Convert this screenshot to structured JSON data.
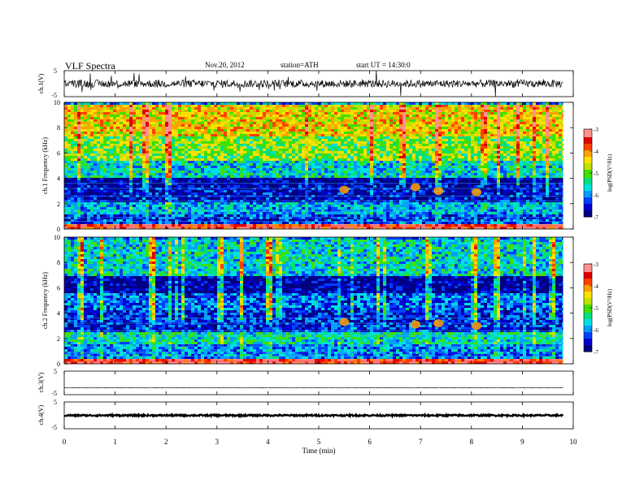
{
  "header": {
    "title": "VLF Spectra",
    "date": "Nov.20, 2012",
    "station": "station=ATH",
    "start": "start UT =  14:30:0"
  },
  "colorbar": {
    "label": "log(PSD(V²/Hz)",
    "ticks": [
      "-3",
      "-4",
      "-5",
      "-6",
      "-7"
    ],
    "colors": [
      "#000080",
      "#0000d0",
      "#0040ff",
      "#00a0ff",
      "#00e0e0",
      "#00e080",
      "#40e000",
      "#c0e000",
      "#ffe000",
      "#ffa000",
      "#ff4000",
      "#e00000",
      "#ff9090",
      "#ffffff"
    ]
  },
  "chart_data": [
    {
      "type": "line",
      "id": "ch1-waveform",
      "ylabel": "ch.1(V)",
      "ylim": [
        -5,
        5
      ],
      "ytick_labels": [
        "5",
        "-5"
      ],
      "xlim": [
        0,
        10
      ],
      "description_values": {
        "baseline": 0,
        "typical_amplitude": 1.5,
        "max_spike": 4
      }
    },
    {
      "type": "heatmap",
      "id": "ch1-spectrogram",
      "ylabel": "ch.1 Frequency (kHz)",
      "ylim": [
        0,
        10
      ],
      "ytick_labels": [
        "0",
        "2",
        "4",
        "6",
        "8",
        "10"
      ],
      "xlim": [
        0,
        10
      ],
      "data_end_min": 9.8,
      "color_range_logPSD": [
        -7,
        -3
      ],
      "bands_kHz": [
        {
          "from": 0,
          "to": 0.4,
          "logPSD": -3.5
        },
        {
          "from": 0.4,
          "to": 1.2,
          "logPSD": -6.3
        },
        {
          "from": 1.2,
          "to": 2.2,
          "logPSD": -5.8
        },
        {
          "from": 2.2,
          "to": 3.5,
          "logPSD": -6.6
        },
        {
          "from": 3.5,
          "to": 4.2,
          "logPSD": -6.8
        },
        {
          "from": 4.2,
          "to": 5.5,
          "logPSD": -5.6
        },
        {
          "from": 5.5,
          "to": 7.5,
          "logPSD": -4.9
        },
        {
          "from": 7.5,
          "to": 10,
          "logPSD": -4.4
        }
      ],
      "bursts": [
        {
          "t_min": 5.5,
          "f_kHz": 3.1
        },
        {
          "t_min": 6.9,
          "f_kHz": 3.3
        },
        {
          "t_min": 7.35,
          "f_kHz": 3.0
        },
        {
          "t_min": 8.1,
          "f_kHz": 2.9
        }
      ]
    },
    {
      "type": "heatmap",
      "id": "ch2-spectrogram",
      "ylabel": "ch.2 Frequency (kHz)",
      "ylim": [
        0,
        10
      ],
      "ytick_labels": [
        "0",
        "2",
        "4",
        "6",
        "8",
        "10"
      ],
      "xlim": [
        0,
        10
      ],
      "data_end_min": 9.8,
      "color_range_logPSD": [
        -7,
        -3
      ],
      "bands_kHz": [
        {
          "from": 0,
          "to": 0.4,
          "logPSD": -3.5
        },
        {
          "from": 0.4,
          "to": 1.6,
          "logPSD": -6.0
        },
        {
          "from": 1.6,
          "to": 2.6,
          "logPSD": -5.5
        },
        {
          "from": 2.6,
          "to": 4.4,
          "logPSD": -6.4
        },
        {
          "from": 4.4,
          "to": 5.6,
          "logPSD": -6.1
        },
        {
          "from": 5.6,
          "to": 7.0,
          "logPSD": -6.8
        },
        {
          "from": 7.0,
          "to": 10,
          "logPSD": -5.6
        }
      ],
      "bursts": [
        {
          "t_min": 5.5,
          "f_kHz": 3.3
        },
        {
          "t_min": 6.9,
          "f_kHz": 3.1
        },
        {
          "t_min": 7.35,
          "f_kHz": 3.2
        },
        {
          "t_min": 8.1,
          "f_kHz": 3.0
        }
      ]
    },
    {
      "type": "line",
      "id": "ch3-waveform",
      "ylabel": "ch.3(V)",
      "ylim": [
        -5,
        5
      ],
      "ytick_labels": [
        "5",
        "-5"
      ],
      "xlim": [
        0,
        10
      ],
      "description_values": {
        "baseline": -2,
        "typical_amplitude": 0.05
      }
    },
    {
      "type": "line",
      "id": "ch4-waveform",
      "ylabel": "ch.4(V)",
      "ylim": [
        -5,
        5
      ],
      "ytick_labels": [
        "5",
        "-5"
      ],
      "xlim": [
        0,
        10
      ],
      "description_values": {
        "baseline": 0,
        "typical_amplitude": 0.3
      }
    }
  ],
  "xaxis": {
    "label": "Time  (min)",
    "tick_labels": [
      "0",
      "1",
      "2",
      "3",
      "4",
      "5",
      "6",
      "7",
      "8",
      "9",
      "10"
    ],
    "range": [
      0,
      10
    ]
  }
}
